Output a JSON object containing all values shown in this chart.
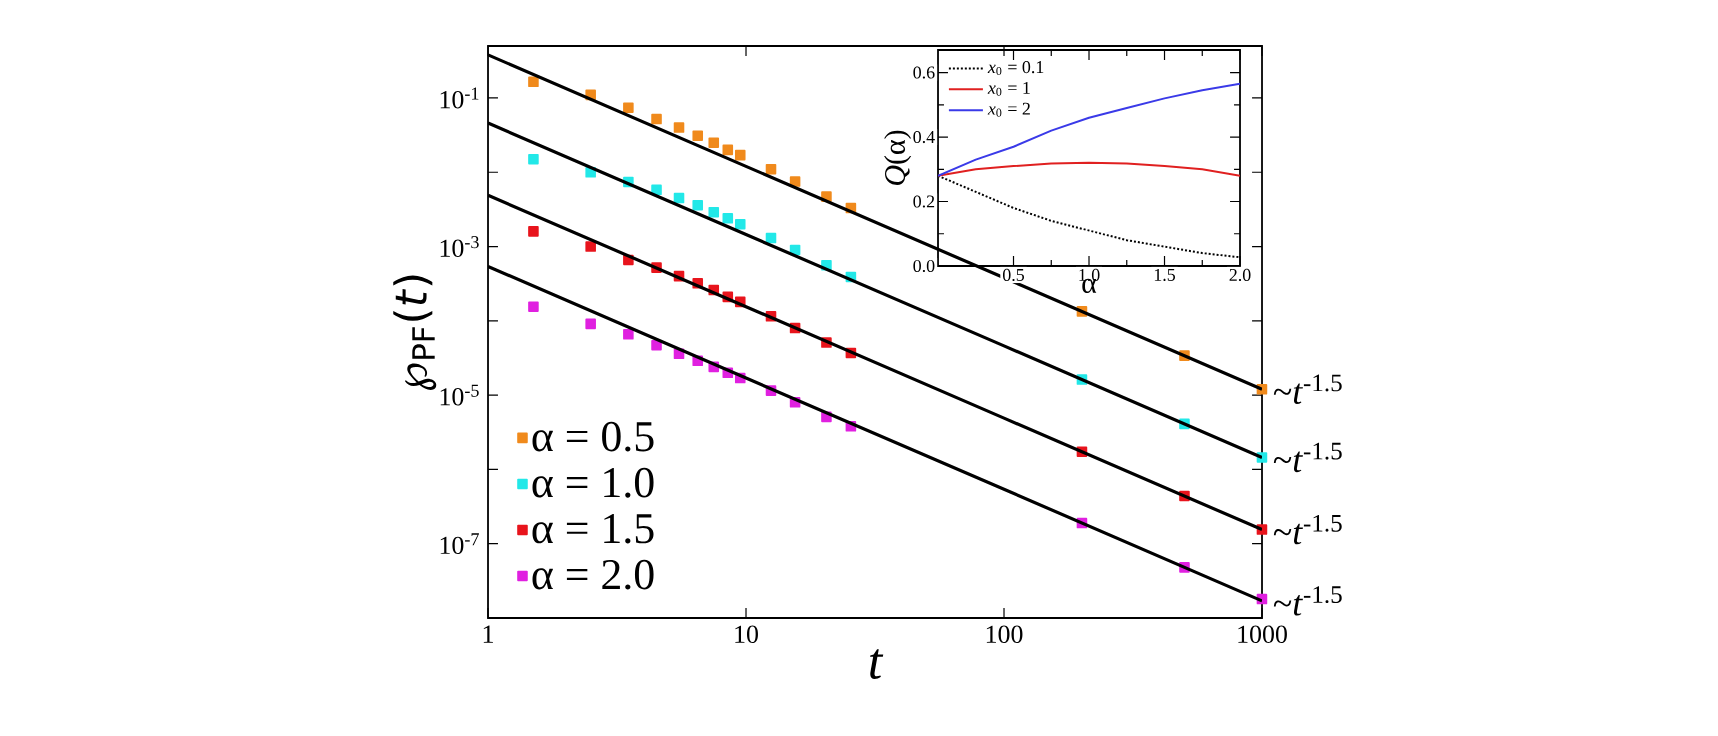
{
  "chart_data": [
    {
      "type": "scatter",
      "xlabel": "t",
      "ylabel": "℘$_{PF}$(*t*)",
      "log": "xy",
      "xlim": [
        1,
        1000
      ],
      "ylim": [
        1e-08,
        0.5
      ],
      "xticks": [
        1,
        10,
        100,
        1000
      ],
      "yticks": [
        {
          "value": 1e-08,
          "label": null
        },
        {
          "value": 1e-07,
          "label": "10$^{-7}$"
        },
        {
          "value": 1e-06,
          "label": null
        },
        {
          "value": 1e-05,
          "label": "10$^{-5}$"
        },
        {
          "value": 0.0001,
          "label": null
        },
        {
          "value": 0.001,
          "label": "10$^{-3}$"
        },
        {
          "value": 0.01,
          "label": null
        },
        {
          "value": 0.1,
          "label": "10$^{-1}$"
        }
      ],
      "marker": "square",
      "legend": "bottom left",
      "x": [
        1.5,
        2.5,
        3.5,
        4.5,
        5.5,
        6.5,
        7.5,
        8.5,
        9.5,
        12.5,
        15.5,
        20.5,
        25.5,
        200.5,
        500.5,
        999.5
      ],
      "series": [
        {
          "name": "α = 0.5",
          "color": "#f08a1c",
          "values": [
            0.165,
            0.11,
            0.074,
            0.052,
            0.04,
            0.031,
            0.025,
            0.02,
            0.017,
            0.011,
            0.0075,
            0.0047,
            0.0033,
            0.000134,
            3.4e-05,
            1.2e-05
          ]
        },
        {
          "name": "α = 1.0",
          "color": "#22e8e8",
          "values": [
            0.015,
            0.01,
            0.0074,
            0.0058,
            0.0045,
            0.0036,
            0.0029,
            0.0024,
            0.002,
            0.0013,
            0.0009,
            0.00056,
            0.00039,
            1.62e-05,
            4.1e-06,
            1.45e-06
          ]
        },
        {
          "name": "α = 1.5",
          "color": "#e8141c",
          "values": [
            0.0016,
            0.001,
            0.00066,
            0.00052,
            0.0004,
            0.00032,
            0.00026,
            0.00021,
            0.00018,
            0.000115,
            8e-05,
            5.1e-05,
            3.7e-05,
            1.73e-06,
            4.4e-07,
            1.55e-07
          ]
        },
        {
          "name": "α = 2.0",
          "color": "#e020e0",
          "values": [
            0.000155,
            9.1e-05,
            6.6e-05,
            4.7e-05,
            3.6e-05,
            2.9e-05,
            2.4e-05,
            2e-05,
            1.7e-05,
            1.15e-05,
            8e-06,
            5.1e-06,
            3.8e-06,
            1.9e-07,
            4.8e-08,
            1.8e-08
          ]
        },
        {
          "type": "line",
          "marker": "none",
          "color": "#000000",
          "x": [
            1,
            10,
            100,
            1000
          ],
          "values": [
            0.38,
            0.012,
            0.00038,
            1.2e-05
          ]
        },
        {
          "type": "line",
          "marker": "none",
          "color": "#000000",
          "x": [
            1,
            10,
            100,
            1000
          ],
          "values": [
            0.046,
            0.00145,
            4.6e-05,
            1.45e-06
          ]
        },
        {
          "type": "line",
          "marker": "none",
          "color": "#000000",
          "x": [
            1,
            10,
            100,
            1000
          ],
          "values": [
            0.0049,
            0.000155,
            4.9e-06,
            1.55e-07
          ]
        },
        {
          "type": "line",
          "marker": "none",
          "color": "#000000",
          "x": [
            1,
            10,
            100,
            1000
          ],
          "values": [
            0.00054,
            1.7e-05,
            5.4e-07,
            1.7e-08
          ]
        }
      ],
      "annotations": [
        "~*t*$^{-1.5}$",
        "~*t*$^{-1.5}$",
        "~*t*$^{-1.5}$",
        "~*t*$^{-1.5}$"
      ]
    },
    {
      "type": "line",
      "xlabel": "α",
      "ylabel": "*Q*(α)",
      "xlim": [
        0,
        2
      ],
      "ylim": [
        0,
        0.67
      ],
      "xticks": [
        {
          "value": 0.5,
          "label": "0.5"
        },
        {
          "value": 1,
          "label": "1.0"
        },
        {
          "value": 1.5,
          "label": "1.5"
        },
        {
          "value": 2,
          "label": "2.0"
        }
      ],
      "yticks": [
        {
          "value": 0,
          "label": "0.0"
        },
        {
          "value": 0.2,
          "label": "0.2"
        },
        {
          "value": 0.4,
          "label": "0.4"
        },
        {
          "value": 0.6,
          "label": "0.6"
        }
      ],
      "legend": "top left",
      "marker": "none",
      "x": [
        0,
        0.25,
        0.5,
        0.75,
        1,
        1.25,
        1.5,
        1.75,
        2
      ],
      "series": [
        {
          "name": "*x*$_{0}$ = 0.1",
          "color": "#000000",
          "line_style": "dotted",
          "values": [
            0.28,
            0.23,
            0.18,
            0.14,
            0.11,
            0.08,
            0.06,
            0.04,
            0.027
          ]
        },
        {
          "name": "*x*$_{0}$ = 1",
          "color": "#e02020",
          "values": [
            0.28,
            0.3,
            0.31,
            0.318,
            0.32,
            0.318,
            0.31,
            0.3,
            0.28
          ]
        },
        {
          "name": "*x*$_{0}$ = 2",
          "color": "#3a3ae8",
          "values": [
            0.28,
            0.33,
            0.37,
            0.42,
            0.46,
            0.49,
            0.52,
            0.545,
            0.565
          ]
        }
      ]
    }
  ]
}
